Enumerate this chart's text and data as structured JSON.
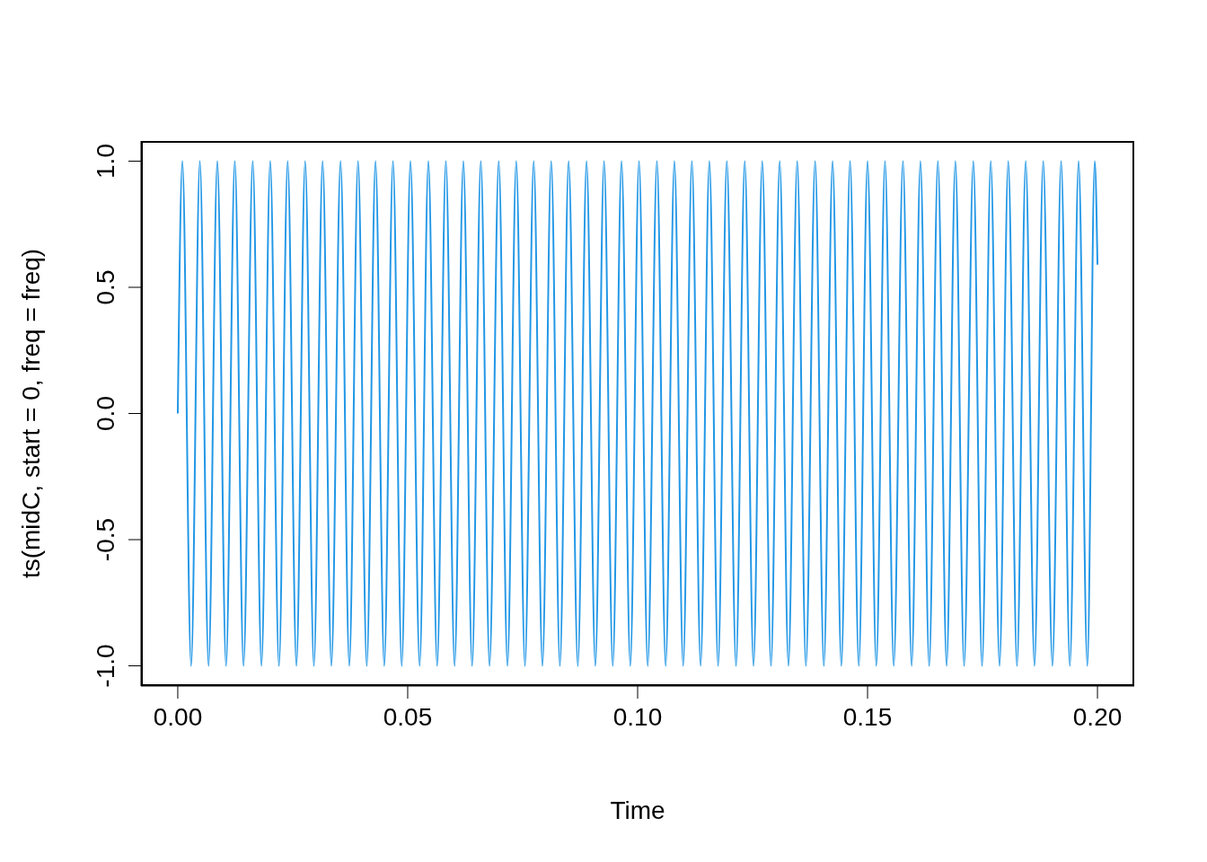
{
  "chart_data": {
    "type": "line",
    "xlabel": "Time",
    "ylabel": "ts(midC, start = 0, freq = freq)",
    "color": "#2297e6",
    "x": [
      0,
      0.001,
      0.0029,
      0.0048,
      0.0067,
      0.0086,
      0.0105,
      0.0124,
      0.0143,
      0.0163,
      0.0182,
      0.0201,
      0.022,
      0.0239,
      0.0258,
      0.0277,
      0.0296,
      0.0315,
      0.0334,
      0.0354,
      0.0373,
      0.0392,
      0.0411,
      0.043,
      0.0449,
      0.0468,
      0.0487,
      0.0506,
      0.0526,
      0.0545,
      0.0564,
      0.0583,
      0.0602,
      0.0621,
      0.064,
      0.0659,
      0.0678,
      0.0698,
      0.0717,
      0.0736,
      0.0755,
      0.0774,
      0.0793,
      0.0812,
      0.0831,
      0.085,
      0.087,
      0.0889,
      0.0908,
      0.0927,
      0.0946,
      0.0965,
      0.0984,
      0.1003,
      0.1022,
      0.1042,
      0.1061,
      0.108,
      0.1099,
      0.1118,
      0.1137,
      0.1156,
      0.1175,
      0.1194,
      0.1214,
      0.1233,
      0.1252,
      0.1271,
      0.129,
      0.1309,
      0.1328,
      0.1347,
      0.1366,
      0.1386,
      0.1405,
      0.1424,
      0.1443,
      0.1462,
      0.1481,
      0.15,
      0.1519,
      0.1538,
      0.1557,
      0.1577,
      0.1596,
      0.1615,
      0.1634,
      0.1653,
      0.1672,
      0.1691,
      0.171,
      0.173,
      0.1749,
      0.1768,
      0.1787,
      0.1806,
      0.1825,
      0.1844,
      0.1863,
      0.1882,
      0.1902,
      0.1921,
      0.194,
      0.1959,
      0.1978,
      0.1994,
      0.2
    ],
    "values": [
      0,
      1,
      -1,
      1,
      -1,
      1,
      -1,
      1,
      -1,
      1,
      -1,
      1,
      -1,
      1,
      -1,
      1,
      -1,
      1,
      -1,
      1,
      -1,
      1,
      -1,
      1,
      -1,
      1,
      -1,
      1,
      -1,
      1,
      -1,
      1,
      -1,
      1,
      -1,
      1,
      -1,
      1,
      -1,
      1,
      -1,
      1,
      -1,
      1,
      -1,
      1,
      -1,
      1,
      -1,
      1,
      -1,
      1,
      -1,
      1,
      -1,
      1,
      -1,
      1,
      -1,
      1,
      -1,
      1,
      -1,
      1,
      -1,
      1,
      -1,
      1,
      -1,
      1,
      -1,
      1,
      -1,
      1,
      -1,
      1,
      -1,
      1,
      -1,
      1,
      -1,
      1,
      -1,
      1,
      -1,
      1,
      -1,
      1,
      -1,
      1,
      -1,
      1,
      -1,
      1,
      -1,
      1,
      -1,
      1,
      -1,
      1,
      -1,
      1,
      -1,
      1,
      -1,
      1,
      0.59
    ],
    "xlim": [
      -0.008,
      0.208
    ],
    "ylim": [
      -1.08,
      1.08
    ],
    "xticks": [
      {
        "value": 0,
        "label": "0.00"
      },
      {
        "value": 0.05,
        "label": "0.05"
      },
      {
        "value": 0.1,
        "label": "0.10"
      },
      {
        "value": 0.15,
        "label": "0.15"
      },
      {
        "value": 0.2,
        "label": "0.20"
      }
    ],
    "yticks": [
      {
        "value": -1,
        "label": "-1.0"
      },
      {
        "value": -0.5,
        "label": "-0.5"
      },
      {
        "value": 0,
        "label": "0.0"
      },
      {
        "value": 0.5,
        "label": "0.5"
      },
      {
        "value": 1,
        "label": "1.0"
      }
    ]
  }
}
